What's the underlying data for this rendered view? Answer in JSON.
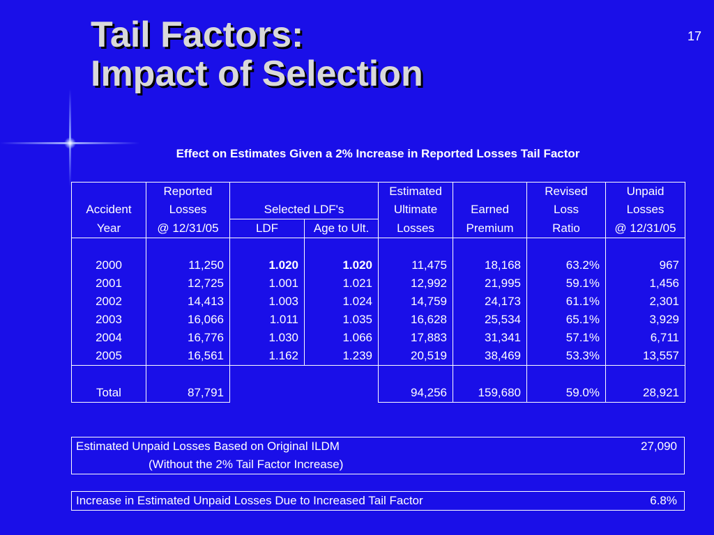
{
  "slide": {
    "title_line1": "Tail Factors:",
    "title_line2": "Impact of Selection",
    "number": "17",
    "caption": "Effect on Estimates Given a 2% Increase in Reported Losses Tail Factor"
  },
  "table": {
    "headers": {
      "accident": [
        "",
        "Accident",
        "Year"
      ],
      "reported": [
        "Reported",
        "Losses",
        "@ 12/31/05"
      ],
      "selected_ldfs": "Selected LDF's",
      "ldf": "LDF",
      "age_to_ult": "Age to Ult.",
      "estimated": [
        "Estimated",
        "Ultimate",
        "Losses"
      ],
      "earned": [
        "",
        "Earned",
        "Premium"
      ],
      "revised": [
        "Revised",
        "Loss",
        "Ratio"
      ],
      "unpaid": [
        "Unpaid",
        "Losses",
        "@ 12/31/05"
      ]
    },
    "rows": [
      [
        "2000",
        "11,250",
        "1.020",
        "1.020",
        "11,475",
        "18,168",
        "63.2%",
        "967"
      ],
      [
        "2001",
        "12,725",
        "1.001",
        "1.021",
        "12,992",
        "21,995",
        "59.1%",
        "1,456"
      ],
      [
        "2002",
        "14,413",
        "1.003",
        "1.024",
        "14,759",
        "24,173",
        "61.1%",
        "2,301"
      ],
      [
        "2003",
        "16,066",
        "1.011",
        "1.035",
        "16,628",
        "25,534",
        "65.1%",
        "3,929"
      ],
      [
        "2004",
        "16,776",
        "1.030",
        "1.066",
        "17,883",
        "31,341",
        "57.1%",
        "6,711"
      ],
      [
        "2005",
        "16,561",
        "1.162",
        "1.239",
        "20,519",
        "38,469",
        "53.3%",
        "13,557"
      ]
    ],
    "total": [
      "Total",
      "87,791",
      "",
      "",
      "94,256",
      "159,680",
      "59.0%",
      "28,921"
    ]
  },
  "summary": {
    "original_label": "Estimated Unpaid Losses Based on Original ILDM",
    "original_sub": "(Without the 2% Tail Factor Increase)",
    "original_value": "27,090",
    "increase_label": "Increase in Estimated Unpaid Losses Due to Increased Tail Factor",
    "increase_value": "6.8%"
  },
  "colors": {
    "background": "#1a0fe8",
    "title": "#d9d9d9",
    "text": "#ffffff"
  }
}
